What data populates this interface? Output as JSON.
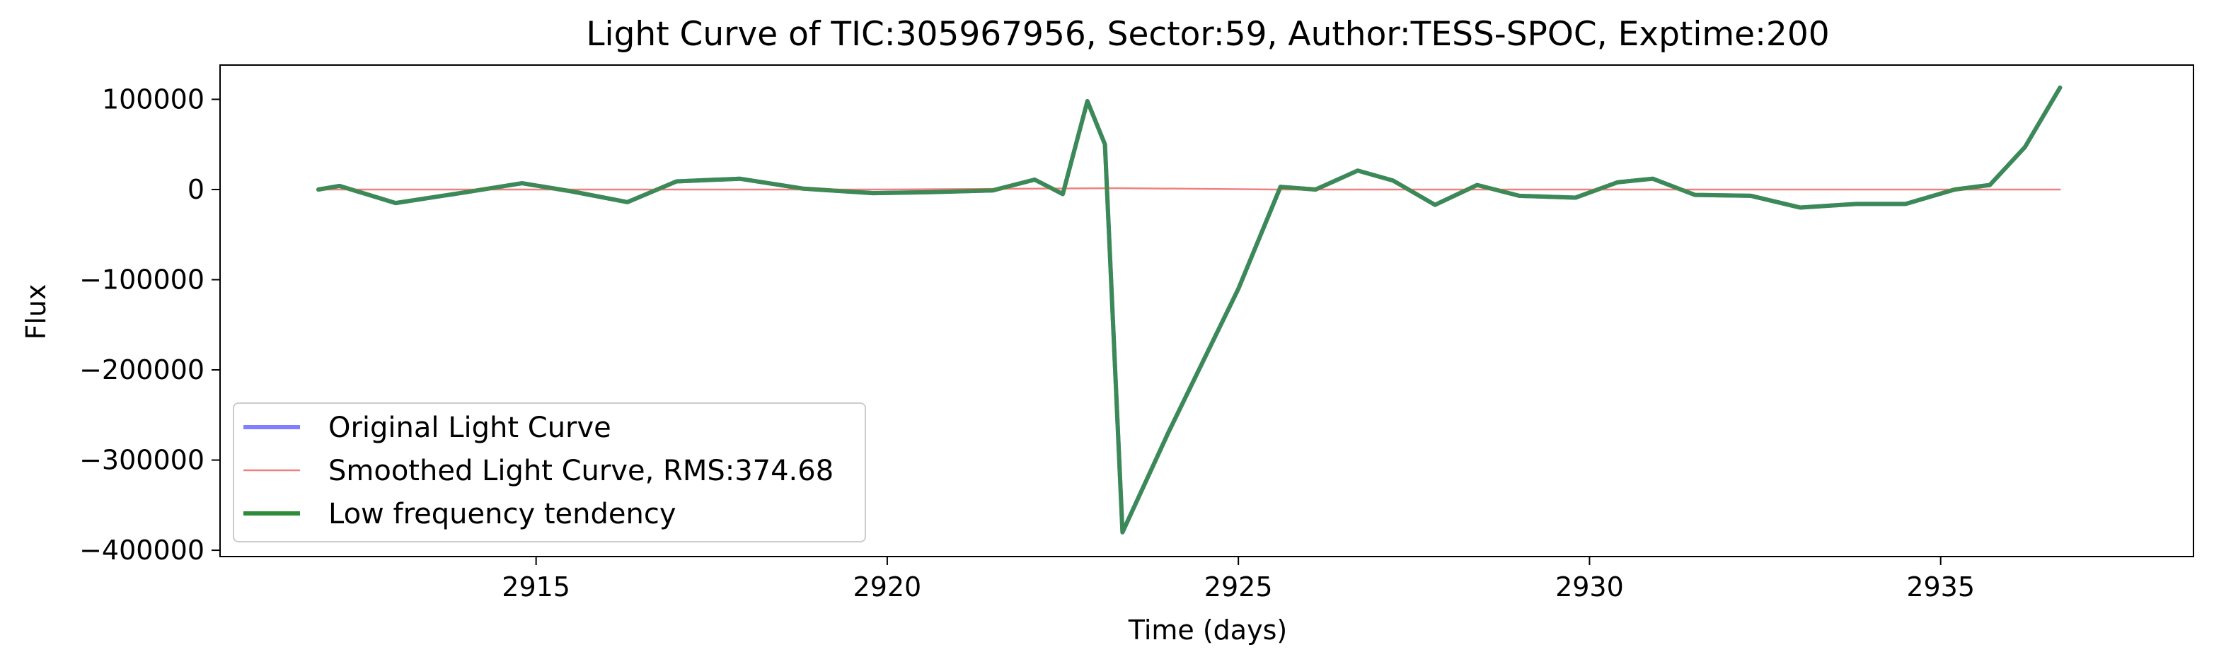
{
  "chart_data": {
    "type": "line",
    "title": "Light Curve of TIC:305967956, Sector:59, Author:TESS-SPOC, Exptime:200",
    "xlabel": "Time (days)",
    "ylabel": "Flux",
    "xlim": [
      2910.5,
      2938.6
    ],
    "ylim": [
      -407000,
      138000
    ],
    "x_ticks": [
      2915,
      2920,
      2925,
      2930,
      2935
    ],
    "y_ticks": [
      100000,
      0,
      -100000,
      -200000,
      -300000,
      -400000
    ],
    "x_tick_labels": [
      "2915",
      "2920",
      "2925",
      "2930",
      "2935"
    ],
    "y_tick_labels": [
      "100000",
      "0",
      "−100000",
      "−200000",
      "−300000",
      "−400000"
    ],
    "grid": false,
    "legend_position": "lower-left",
    "series": [
      {
        "name": "Original Light Curve",
        "color": "#7f7fff",
        "style": "thick",
        "x": [
          2911.9,
          2912.2,
          2913.0,
          2914.0,
          2914.8,
          2915.5,
          2916.3,
          2917.0,
          2917.9,
          2918.8,
          2919.8,
          2920.6,
          2921.5,
          2922.1,
          2922.5,
          2922.85,
          2923.1,
          2923.35,
          2924.0,
          2925.0,
          2925.6,
          2926.1,
          2926.7,
          2927.2,
          2927.8,
          2928.4,
          2929.0,
          2929.8,
          2930.4,
          2930.9,
          2931.5,
          2932.3,
          2933.0,
          2933.8,
          2934.5,
          2935.2,
          2935.7,
          2936.2,
          2936.7
        ],
        "values": [
          0,
          4000,
          -15000,
          -3000,
          7000,
          -2000,
          -14000,
          9000,
          12000,
          1000,
          -4000,
          -3000,
          -1000,
          11000,
          -5000,
          98000,
          50000,
          -380000,
          -270000,
          -110000,
          3000,
          0,
          21000,
          10000,
          -17000,
          5000,
          -7000,
          -9000,
          8000,
          12000,
          -6000,
          -7000,
          -20000,
          -16000,
          -16000,
          0,
          5000,
          47000,
          113000
        ]
      },
      {
        "name": "Smoothed Light Curve, RMS:374.68",
        "color": "#f08080",
        "style": "thin",
        "x": [
          2911.9,
          2915.0,
          2920.0,
          2923.3,
          2925.6,
          2930.0,
          2935.0,
          2936.7
        ],
        "values": [
          0,
          0,
          0,
          1500,
          0,
          0,
          0,
          0
        ]
      },
      {
        "name": "Low frequency tendency",
        "color": "#2e8b3a",
        "style": "thick",
        "x": [
          2911.9,
          2912.2,
          2913.0,
          2914.0,
          2914.8,
          2915.5,
          2916.3,
          2917.0,
          2917.9,
          2918.8,
          2919.8,
          2920.6,
          2921.5,
          2922.1,
          2922.5,
          2922.85,
          2923.1,
          2923.35,
          2924.0,
          2925.0,
          2925.6,
          2926.1,
          2926.7,
          2927.2,
          2927.8,
          2928.4,
          2929.0,
          2929.8,
          2930.4,
          2930.9,
          2931.5,
          2932.3,
          2933.0,
          2933.8,
          2934.5,
          2935.2,
          2935.7,
          2936.2,
          2936.7
        ],
        "values": [
          0,
          4000,
          -15000,
          -3000,
          7000,
          -2000,
          -14000,
          9000,
          12000,
          1000,
          -4000,
          -3000,
          -1000,
          11000,
          -5000,
          98000,
          50000,
          -380000,
          -270000,
          -110000,
          3000,
          0,
          21000,
          10000,
          -17000,
          5000,
          -7000,
          -9000,
          8000,
          12000,
          -6000,
          -7000,
          -20000,
          -16000,
          -16000,
          0,
          5000,
          47000,
          113000
        ]
      }
    ]
  }
}
